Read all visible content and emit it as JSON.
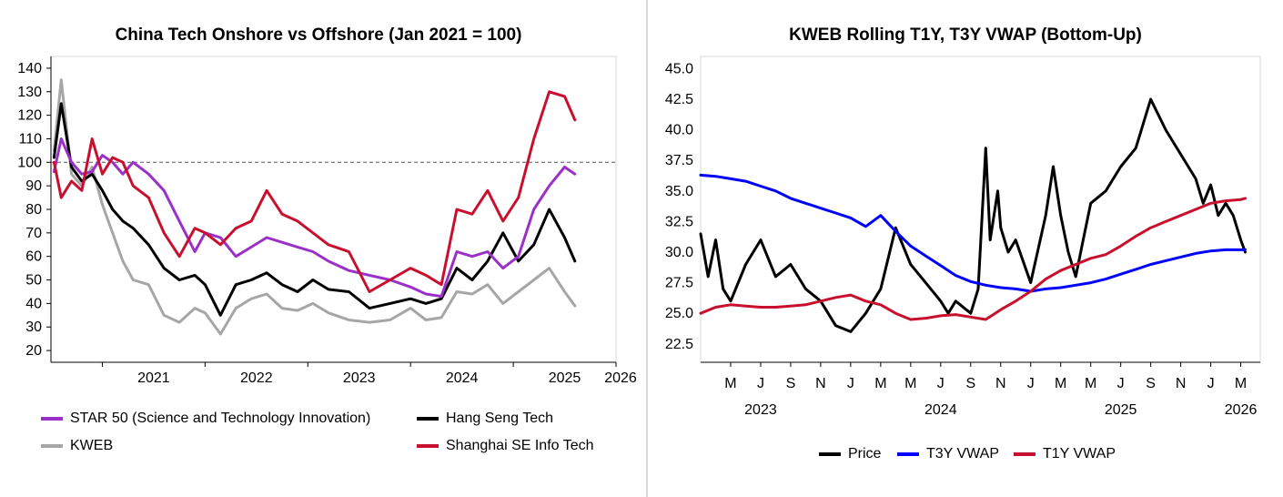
{
  "chart_data": [
    {
      "type": "line",
      "title": "China Tech Onshore vs Offshore (Jan 2021 = 100)",
      "xlabel": "",
      "ylabel": "",
      "x_ticks": [
        "2021",
        "2022",
        "2023",
        "2024",
        "2025",
        "2026"
      ],
      "x_range": [
        2020.5,
        2026.0
      ],
      "ylim": [
        15,
        145
      ],
      "y_ticks": [
        20,
        30,
        40,
        50,
        60,
        70,
        80,
        90,
        100,
        110,
        120,
        130,
        140
      ],
      "reference_line": {
        "y": 100,
        "style": "dashed"
      },
      "legend_position": "bottom",
      "series": [
        {
          "name": "STAR 50 (Science and Technology Innovation)",
          "color": "#9b30c9",
          "x": [
            2020.53,
            2020.6,
            2020.7,
            2020.8,
            2020.9,
            2021.0,
            2021.1,
            2021.2,
            2021.3,
            2021.45,
            2021.6,
            2021.75,
            2021.9,
            2022.0,
            2022.15,
            2022.3,
            2022.45,
            2022.6,
            2022.75,
            2022.9,
            2023.05,
            2023.2,
            2023.4,
            2023.6,
            2023.8,
            2024.0,
            2024.15,
            2024.3,
            2024.45,
            2024.6,
            2024.75,
            2024.9,
            2025.05,
            2025.2,
            2025.35,
            2025.5,
            2025.6
          ],
          "values": [
            96,
            110,
            100,
            95,
            96,
            103,
            100,
            95,
            100,
            95,
            88,
            75,
            62,
            70,
            68,
            60,
            64,
            68,
            66,
            64,
            62,
            58,
            54,
            52,
            50,
            47,
            44,
            43,
            62,
            60,
            62,
            55,
            60,
            80,
            90,
            98,
            95
          ]
        },
        {
          "name": "Hang Seng Tech",
          "color": "#000000",
          "x": [
            2020.53,
            2020.6,
            2020.7,
            2020.8,
            2020.9,
            2021.0,
            2021.1,
            2021.2,
            2021.3,
            2021.45,
            2021.6,
            2021.75,
            2021.9,
            2022.0,
            2022.15,
            2022.3,
            2022.45,
            2022.6,
            2022.75,
            2022.9,
            2023.05,
            2023.2,
            2023.4,
            2023.6,
            2023.8,
            2024.0,
            2024.15,
            2024.3,
            2024.45,
            2024.6,
            2024.75,
            2024.9,
            2025.05,
            2025.2,
            2025.35,
            2025.5,
            2025.6
          ],
          "values": [
            102,
            125,
            98,
            92,
            95,
            88,
            80,
            75,
            72,
            65,
            55,
            50,
            52,
            48,
            35,
            48,
            50,
            53,
            48,
            45,
            50,
            46,
            45,
            38,
            40,
            42,
            40,
            42,
            55,
            50,
            58,
            70,
            58,
            65,
            80,
            68,
            58
          ]
        },
        {
          "name": "KWEB",
          "color": "#a6a6a6",
          "x": [
            2020.53,
            2020.6,
            2020.7,
            2020.8,
            2020.9,
            2021.0,
            2021.1,
            2021.2,
            2021.3,
            2021.45,
            2021.6,
            2021.75,
            2021.9,
            2022.0,
            2022.15,
            2022.3,
            2022.45,
            2022.6,
            2022.75,
            2022.9,
            2023.05,
            2023.2,
            2023.4,
            2023.6,
            2023.8,
            2024.0,
            2024.15,
            2024.3,
            2024.45,
            2024.6,
            2024.75,
            2024.9,
            2025.05,
            2025.2,
            2025.35,
            2025.5,
            2025.6
          ],
          "values": [
            105,
            135,
            95,
            90,
            98,
            82,
            70,
            58,
            50,
            48,
            35,
            32,
            38,
            36,
            27,
            38,
            42,
            44,
            38,
            37,
            40,
            36,
            33,
            32,
            33,
            38,
            33,
            34,
            45,
            44,
            48,
            40,
            45,
            50,
            55,
            45,
            39
          ]
        },
        {
          "name": "Shanghai SE Info Tech",
          "color": "#c8102e",
          "x": [
            2020.53,
            2020.6,
            2020.7,
            2020.8,
            2020.9,
            2021.0,
            2021.1,
            2021.2,
            2021.3,
            2021.45,
            2021.6,
            2021.75,
            2021.9,
            2022.0,
            2022.15,
            2022.3,
            2022.45,
            2022.6,
            2022.75,
            2022.9,
            2023.05,
            2023.2,
            2023.4,
            2023.6,
            2023.8,
            2024.0,
            2024.15,
            2024.3,
            2024.45,
            2024.6,
            2024.75,
            2024.9,
            2025.05,
            2025.2,
            2025.35,
            2025.5,
            2025.6
          ],
          "values": [
            100,
            85,
            92,
            88,
            110,
            95,
            102,
            100,
            90,
            85,
            70,
            60,
            72,
            70,
            65,
            72,
            75,
            88,
            78,
            75,
            70,
            65,
            62,
            45,
            50,
            55,
            52,
            48,
            80,
            78,
            88,
            75,
            85,
            110,
            130,
            128,
            118
          ]
        }
      ]
    },
    {
      "type": "line",
      "title": "KWEB Rolling T1Y, T3Y VWAP (Bottom-Up)",
      "xlabel": "",
      "ylabel": "",
      "x_ticks": [
        "M",
        "J",
        "S",
        "N",
        "J",
        "M",
        "M",
        "J",
        "S",
        "N",
        "J",
        "M",
        "M",
        "J",
        "S",
        "N",
        "J",
        "M"
      ],
      "x_tick_months": [
        3,
        5,
        7,
        9,
        11,
        13,
        15,
        17,
        19,
        21,
        23,
        25,
        27,
        29,
        31,
        33,
        35,
        37
      ],
      "x_group_labels": [
        "2023",
        "2024",
        "2025",
        "2026"
      ],
      "x_group_months": [
        5,
        17,
        29,
        37
      ],
      "x_range": [
        1.0,
        38.3
      ],
      "ylim": [
        21.0,
        46.0
      ],
      "y_ticks": [
        "22.5",
        "25.0",
        "27.5",
        "30.0",
        "32.5",
        "35.0",
        "37.5",
        "40.0",
        "42.5",
        "45.0"
      ],
      "legend_position": "bottom",
      "series": [
        {
          "name": "Price",
          "color": "#000000",
          "x": [
            1.0,
            1.5,
            2,
            2.5,
            3,
            4,
            5,
            6,
            7,
            8,
            9,
            10,
            11,
            12,
            13,
            14,
            15,
            16,
            17,
            17.5,
            18,
            19,
            19.5,
            20,
            20.3,
            20.8,
            21,
            21.5,
            22,
            23,
            24,
            24.5,
            25,
            25.5,
            26,
            26.5,
            27,
            28,
            29,
            30,
            31,
            32,
            33,
            34,
            34.5,
            35,
            35.5,
            36,
            36.5,
            37,
            37.3
          ],
          "values": [
            31.5,
            28,
            31,
            27,
            26,
            29,
            31,
            28,
            29,
            27,
            26,
            24,
            23.5,
            25,
            27,
            32,
            29,
            27.5,
            26,
            25,
            26,
            25,
            27,
            38.5,
            31,
            35,
            32,
            30,
            31,
            27.5,
            33,
            37,
            33,
            30,
            28,
            31,
            34,
            35,
            37,
            38.5,
            42.5,
            40,
            38,
            36,
            34,
            35.5,
            33,
            34,
            33,
            31,
            30
          ]
        },
        {
          "name": "T3Y VWAP",
          "color": "#0000ff",
          "x": [
            1.0,
            2,
            3,
            4,
            5,
            6,
            7,
            8,
            9,
            10,
            11,
            12,
            13,
            14,
            15,
            16,
            17,
            18,
            19,
            20,
            21,
            22,
            23,
            24,
            25,
            26,
            27,
            28,
            29,
            30,
            31,
            32,
            33,
            34,
            35,
            36,
            37,
            37.3
          ],
          "values": [
            36.3,
            36.2,
            36.0,
            35.8,
            35.4,
            35.0,
            34.4,
            34.0,
            33.6,
            33.2,
            32.8,
            32.1,
            33.0,
            31.7,
            30.5,
            29.7,
            28.9,
            28.1,
            27.6,
            27.3,
            27.1,
            27.0,
            26.8,
            27.0,
            27.1,
            27.3,
            27.5,
            27.8,
            28.2,
            28.6,
            29.0,
            29.3,
            29.6,
            29.9,
            30.1,
            30.2,
            30.2,
            30.2
          ]
        },
        {
          "name": "T1Y VWAP",
          "color": "#c8102e",
          "x": [
            1.0,
            2,
            3,
            4,
            5,
            6,
            7,
            8,
            9,
            10,
            11,
            12,
            13,
            14,
            15,
            16,
            17,
            18,
            19,
            20,
            21,
            22,
            23,
            24,
            25,
            26,
            27,
            28,
            29,
            30,
            31,
            32,
            33,
            34,
            35,
            36,
            37,
            37.3
          ],
          "values": [
            25.0,
            25.5,
            25.7,
            25.6,
            25.5,
            25.5,
            25.6,
            25.7,
            26.0,
            26.3,
            26.5,
            26.0,
            25.7,
            25.0,
            24.5,
            24.6,
            24.8,
            24.9,
            24.7,
            24.5,
            25.3,
            26.0,
            26.8,
            27.8,
            28.5,
            29.0,
            29.5,
            29.8,
            30.5,
            31.3,
            32.0,
            32.5,
            33.0,
            33.5,
            34.0,
            34.2,
            34.3,
            34.4
          ]
        }
      ]
    }
  ]
}
